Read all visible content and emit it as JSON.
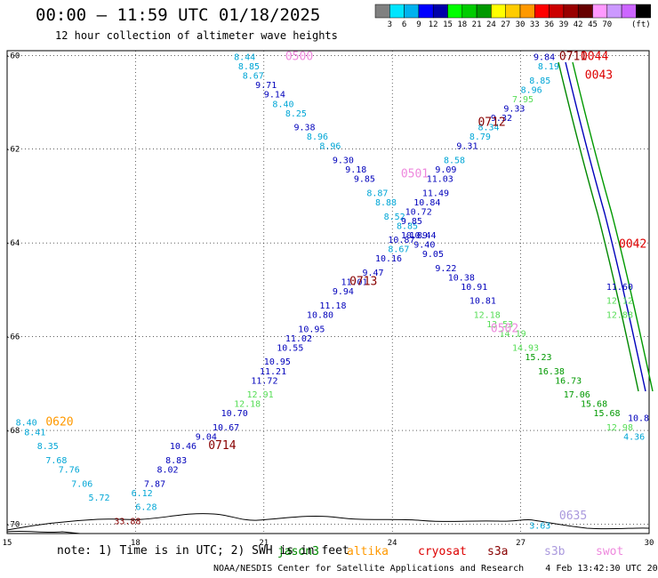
{
  "title": "00:00 – 11:59 UTC 01/18/2025",
  "subtitle": "12 hour collection of altimeter wave heights",
  "note_prefix": "note:  1) Time is in UTC; 2) SWH is in feet",
  "credit": "NOAA/NESDIS Center for Satellite Applications and Research    4 Feb 13:42:30 UTC 2025",
  "colorbar": {
    "unit": "(ft)",
    "colors": [
      "#808080",
      "#00e5ff",
      "#00b2ee",
      "#0000ff",
      "#0000aa",
      "#00ff00",
      "#00cc00",
      "#009900",
      "#ffff00",
      "#ffcc00",
      "#ff9900",
      "#ff0000",
      "#cc0000",
      "#990000",
      "#660000",
      "#ff99ff",
      "#cc99ff",
      "#cc66ff",
      "#000000"
    ],
    "labels": [
      "3",
      "6",
      "9",
      "12",
      "15",
      "18",
      "21",
      "24",
      "27",
      "30",
      "33",
      "36",
      "39",
      "42",
      "45",
      "70"
    ]
  },
  "axes": {
    "x_ticks": [
      "15",
      "18",
      "21",
      "24",
      "27",
      "30"
    ],
    "y_ticks": [
      "-60",
      "-62",
      "-64",
      "-66",
      "-68",
      "-70"
    ],
    "x_range": [
      15,
      30
    ],
    "y_range": [
      -70.2,
      -59.9
    ]
  },
  "legend": [
    {
      "label": "jason3",
      "color": "#008800"
    },
    {
      "label": "altika",
      "color": "#ff9900"
    },
    {
      "label": "cryosat",
      "color": "#dd0000"
    },
    {
      "label": "s3a",
      "color": "#880000"
    },
    {
      "label": "s3b",
      "color": "#aa99dd"
    },
    {
      "label": "swot",
      "color": "#ee88dd"
    }
  ],
  "palette": {
    "lblue": "#00a6d6",
    "dblue": "#0000bb",
    "lgreen": "#55dd55",
    "green": "#009900",
    "brown": "#880000",
    "red": "#dd0000",
    "pink": "#ee88dd",
    "orange": "#ff9900",
    "lilac": "#aa99dd"
  },
  "time_labels": [
    {
      "text": "0500",
      "lon": 21.5,
      "lat": -60.1,
      "c": "pink"
    },
    {
      "text": "0501",
      "lon": 24.2,
      "lat": -62.6,
      "c": "pink"
    },
    {
      "text": "0502",
      "lon": 26.3,
      "lat": -65.9,
      "c": "pink"
    },
    {
      "text": "0711",
      "lon": 27.9,
      "lat": -60.1,
      "c": "brown"
    },
    {
      "text": "0712",
      "lon": 26.0,
      "lat": -61.5,
      "c": "brown"
    },
    {
      "text": "0713",
      "lon": 23.0,
      "lat": -64.9,
      "c": "brown"
    },
    {
      "text": "0714",
      "lon": 19.7,
      "lat": -68.4,
      "c": "brown"
    },
    {
      "text": "0044",
      "lon": 28.4,
      "lat": -60.1,
      "c": "red"
    },
    {
      "text": "0043",
      "lon": 28.5,
      "lat": -60.5,
      "c": "red"
    },
    {
      "text": "0042",
      "lon": 29.3,
      "lat": -64.1,
      "c": "red"
    },
    {
      "text": "0620",
      "lon": 15.9,
      "lat": -67.9,
      "c": "orange"
    },
    {
      "text": "0635",
      "lon": 27.9,
      "lat": -69.9,
      "c": "lilac"
    }
  ],
  "swh_points": [
    {
      "v": "8.44",
      "lon": 20.3,
      "lat": -60.1,
      "c": "lblue"
    },
    {
      "v": "8.85",
      "lon": 20.4,
      "lat": -60.3,
      "c": "lblue"
    },
    {
      "v": "8.67",
      "lon": 20.5,
      "lat": -60.5,
      "c": "lblue"
    },
    {
      "v": "9.71",
      "lon": 20.8,
      "lat": -60.7,
      "c": "dblue"
    },
    {
      "v": "9.14",
      "lon": 21.0,
      "lat": -60.9,
      "c": "dblue"
    },
    {
      "v": "8.40",
      "lon": 21.2,
      "lat": -61.1,
      "c": "lblue"
    },
    {
      "v": "8.25",
      "lon": 21.5,
      "lat": -61.3,
      "c": "lblue"
    },
    {
      "v": "9.38",
      "lon": 21.7,
      "lat": -61.6,
      "c": "dblue"
    },
    {
      "v": "8.96",
      "lon": 22.0,
      "lat": -61.8,
      "c": "lblue"
    },
    {
      "v": "8.96",
      "lon": 22.3,
      "lat": -62.0,
      "c": "lblue"
    },
    {
      "v": "9.30",
      "lon": 22.6,
      "lat": -62.3,
      "c": "dblue"
    },
    {
      "v": "9.18",
      "lon": 22.9,
      "lat": -62.5,
      "c": "dblue"
    },
    {
      "v": "9.85",
      "lon": 23.1,
      "lat": -62.7,
      "c": "dblue"
    },
    {
      "v": "8.87",
      "lon": 23.4,
      "lat": -63.0,
      "c": "lblue"
    },
    {
      "v": "8.88",
      "lon": 23.6,
      "lat": -63.2,
      "c": "lblue"
    },
    {
      "v": "8.52",
      "lon": 23.8,
      "lat": -63.5,
      "c": "lblue"
    },
    {
      "v": "8.85",
      "lon": 24.1,
      "lat": -63.7,
      "c": "lblue"
    },
    {
      "v": "10.89",
      "lon": 24.2,
      "lat": -63.9,
      "c": "dblue"
    },
    {
      "v": "10.44",
      "lon": 24.4,
      "lat": -63.9,
      "c": "dblue"
    },
    {
      "v": "9.40",
      "lon": 24.5,
      "lat": -64.1,
      "c": "dblue"
    },
    {
      "v": "9.05",
      "lon": 24.7,
      "lat": -64.3,
      "c": "dblue"
    },
    {
      "v": "9.22",
      "lon": 25.0,
      "lat": -64.6,
      "c": "dblue"
    },
    {
      "v": "10.38",
      "lon": 25.3,
      "lat": -64.8,
      "c": "dblue"
    },
    {
      "v": "10.91",
      "lon": 25.6,
      "lat": -65.0,
      "c": "dblue"
    },
    {
      "v": "10.81",
      "lon": 25.8,
      "lat": -65.3,
      "c": "dblue"
    },
    {
      "v": "12.18",
      "lon": 25.9,
      "lat": -65.6,
      "c": "lgreen"
    },
    {
      "v": "13.53",
      "lon": 26.2,
      "lat": -65.8,
      "c": "lgreen"
    },
    {
      "v": "14.19",
      "lon": 26.5,
      "lat": -66.0,
      "c": "lgreen"
    },
    {
      "v": "14.93",
      "lon": 26.8,
      "lat": -66.3,
      "c": "lgreen"
    },
    {
      "v": "15.23",
      "lon": 27.1,
      "lat": -66.5,
      "c": "green"
    },
    {
      "v": "16.38",
      "lon": 27.4,
      "lat": -66.8,
      "c": "green"
    },
    {
      "v": "16.73",
      "lon": 27.8,
      "lat": -67.0,
      "c": "green"
    },
    {
      "v": "17.06",
      "lon": 28.0,
      "lat": -67.3,
      "c": "green"
    },
    {
      "v": "15.68",
      "lon": 28.4,
      "lat": -67.5,
      "c": "green"
    },
    {
      "v": "15.68",
      "lon": 28.7,
      "lat": -67.7,
      "c": "green"
    },
    {
      "v": "12.98",
      "lon": 29.0,
      "lat": -68.0,
      "c": "lgreen"
    },
    {
      "v": "4.36",
      "lon": 29.4,
      "lat": -68.2,
      "c": "lblue"
    },
    {
      "v": "9.84",
      "lon": 27.3,
      "lat": -60.1,
      "c": "dblue"
    },
    {
      "v": "8.19",
      "lon": 27.4,
      "lat": -60.3,
      "c": "lblue"
    },
    {
      "v": "8.85",
      "lon": 27.2,
      "lat": -60.6,
      "c": "lblue"
    },
    {
      "v": "8.96",
      "lon": 27.0,
      "lat": -60.8,
      "c": "lblue"
    },
    {
      "v": "7.95",
      "lon": 26.8,
      "lat": -61.0,
      "c": "lgreen"
    },
    {
      "v": "9.33",
      "lon": 26.6,
      "lat": -61.2,
      "c": "dblue"
    },
    {
      "v": "9.32",
      "lon": 26.3,
      "lat": -61.4,
      "c": "dblue"
    },
    {
      "v": "8.34",
      "lon": 26.0,
      "lat": -61.6,
      "c": "lblue"
    },
    {
      "v": "8.79",
      "lon": 25.8,
      "lat": -61.8,
      "c": "lblue"
    },
    {
      "v": "9.31",
      "lon": 25.5,
      "lat": -62.0,
      "c": "dblue"
    },
    {
      "v": "8.58",
      "lon": 25.2,
      "lat": -62.3,
      "c": "lblue"
    },
    {
      "v": "9.09",
      "lon": 25.0,
      "lat": -62.5,
      "c": "dblue"
    },
    {
      "v": "11.03",
      "lon": 24.8,
      "lat": -62.7,
      "c": "dblue"
    },
    {
      "v": "11.49",
      "lon": 24.7,
      "lat": -63.0,
      "c": "dblue"
    },
    {
      "v": "10.84",
      "lon": 24.5,
      "lat": -63.2,
      "c": "dblue"
    },
    {
      "v": "10.72",
      "lon": 24.3,
      "lat": -63.4,
      "c": "dblue"
    },
    {
      "v": "9.85",
      "lon": 24.2,
      "lat": -63.6,
      "c": "dblue"
    },
    {
      "v": "10.87",
      "lon": 23.9,
      "lat": -64.0,
      "c": "dblue"
    },
    {
      "v": "8.67",
      "lon": 23.9,
      "lat": -64.2,
      "c": "lblue"
    },
    {
      "v": "10.16",
      "lon": 23.6,
      "lat": -64.4,
      "c": "dblue"
    },
    {
      "v": "9.47",
      "lon": 23.3,
      "lat": -64.7,
      "c": "dblue"
    },
    {
      "v": "11.01",
      "lon": 22.8,
      "lat": -64.9,
      "c": "dblue"
    },
    {
      "v": "9.94",
      "lon": 22.6,
      "lat": -65.1,
      "c": "dblue"
    },
    {
      "v": "11.18",
      "lon": 22.3,
      "lat": -65.4,
      "c": "dblue"
    },
    {
      "v": "10.80",
      "lon": 22.0,
      "lat": -65.6,
      "c": "dblue"
    },
    {
      "v": "10.95",
      "lon": 21.8,
      "lat": -65.9,
      "c": "dblue"
    },
    {
      "v": "11.02",
      "lon": 21.5,
      "lat": -66.1,
      "c": "dblue"
    },
    {
      "v": "10.55",
      "lon": 21.3,
      "lat": -66.3,
      "c": "dblue"
    },
    {
      "v": "10.95",
      "lon": 21.0,
      "lat": -66.6,
      "c": "dblue"
    },
    {
      "v": "11.21",
      "lon": 20.9,
      "lat": -66.8,
      "c": "dblue"
    },
    {
      "v": "11.72",
      "lon": 20.7,
      "lat": -67.0,
      "c": "dblue"
    },
    {
      "v": "12.91",
      "lon": 20.6,
      "lat": -67.3,
      "c": "lgreen"
    },
    {
      "v": "12.18",
      "lon": 20.3,
      "lat": -67.5,
      "c": "lgreen"
    },
    {
      "v": "10.70",
      "lon": 20.0,
      "lat": -67.7,
      "c": "dblue"
    },
    {
      "v": "10.67",
      "lon": 19.8,
      "lat": -68.0,
      "c": "dblue"
    },
    {
      "v": "9.04",
      "lon": 19.4,
      "lat": -68.2,
      "c": "dblue"
    },
    {
      "v": "10.46",
      "lon": 18.8,
      "lat": -68.4,
      "c": "dblue"
    },
    {
      "v": "8.83",
      "lon": 18.7,
      "lat": -68.7,
      "c": "dblue"
    },
    {
      "v": "8.02",
      "lon": 18.5,
      "lat": -68.9,
      "c": "dblue"
    },
    {
      "v": "7.87",
      "lon": 18.2,
      "lat": -69.2,
      "c": "dblue"
    },
    {
      "v": "6.12",
      "lon": 17.9,
      "lat": -69.4,
      "c": "lblue"
    },
    {
      "v": "6.28",
      "lon": 18.0,
      "lat": -69.7,
      "c": "lblue"
    },
    {
      "v": "8.40",
      "lon": 15.2,
      "lat": -67.9,
      "c": "lblue"
    },
    {
      "v": "8.41",
      "lon": 15.4,
      "lat": -68.1,
      "c": "lblue"
    },
    {
      "v": "8.35",
      "lon": 15.7,
      "lat": -68.4,
      "c": "lblue"
    },
    {
      "v": "7.68",
      "lon": 15.9,
      "lat": -68.7,
      "c": "lblue"
    },
    {
      "v": "7.76",
      "lon": 16.2,
      "lat": -68.9,
      "c": "lblue"
    },
    {
      "v": "7.06",
      "lon": 16.5,
      "lat": -69.2,
      "c": "lblue"
    },
    {
      "v": "5.72",
      "lon": 16.9,
      "lat": -69.5,
      "c": "lblue"
    },
    {
      "v": "33.88",
      "lon": 17.5,
      "lat": -70.0,
      "c": "brown"
    },
    {
      "v": "3.63",
      "lon": 27.2,
      "lat": -70.1,
      "c": "lblue"
    },
    {
      "v": "11.60",
      "lon": 29.0,
      "lat": -65.0,
      "c": "dblue"
    },
    {
      "v": "12.12",
      "lon": 29.0,
      "lat": -65.3,
      "c": "lgreen"
    },
    {
      "v": "12.88",
      "lon": 29.0,
      "lat": -65.6,
      "c": "lgreen"
    },
    {
      "v": "10.8",
      "lon": 29.6,
      "lat": -67.8,
      "c": "dblue"
    }
  ]
}
